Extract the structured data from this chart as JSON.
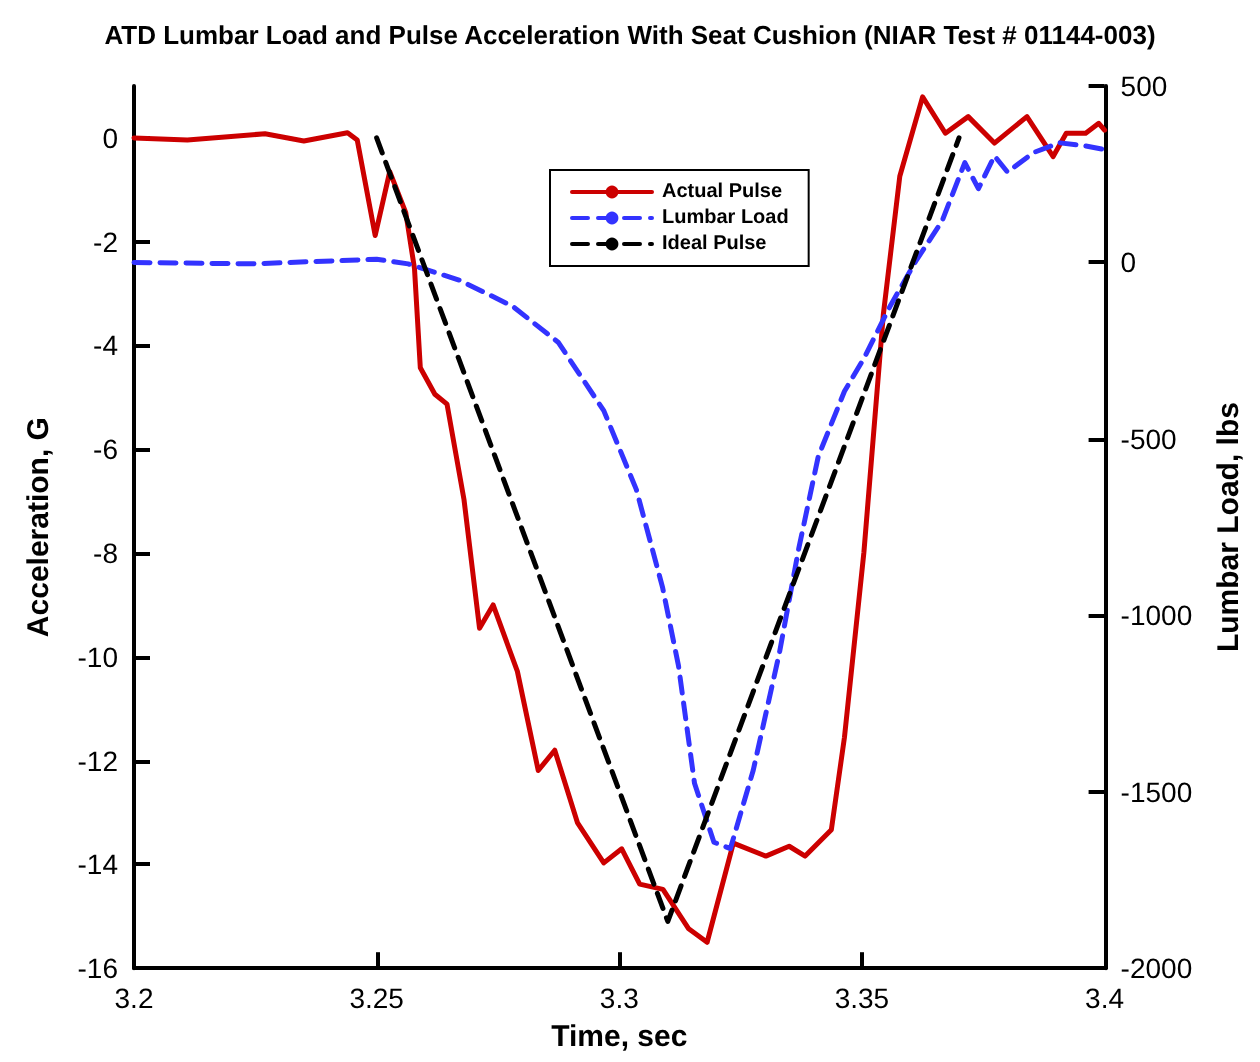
{
  "chart_data": {
    "type": "line",
    "title": "ATD Lumbar Load and Pulse Acceleration With Seat Cushion (NIAR Test # 01144-003)",
    "xlabel": "Time, sec",
    "ylabel": "Acceleration, G",
    "y2label": "Lumbar Load, lbs",
    "xlim": [
      3.2,
      3.4
    ],
    "xticks": [
      3.2,
      3.25,
      3.3,
      3.35,
      3.4
    ],
    "ylim": [
      -16,
      1
    ],
    "yticks": [
      -16,
      -14,
      -12,
      -10,
      -8,
      -6,
      -4,
      -2,
      0
    ],
    "y2lim": [
      -2000,
      500
    ],
    "y2ticks": [
      -2000,
      -1500,
      -1000,
      -500,
      0,
      500
    ],
    "legend": "top",
    "grid": false,
    "marker": "none",
    "series": [
      {
        "name": "Actual Pulse",
        "color": "#cc0000",
        "line_style": "solid",
        "x": [
          3.2,
          3.211,
          3.227,
          3.235,
          3.244,
          3.246,
          3.2497,
          3.2527,
          3.256,
          3.2578,
          3.259,
          3.262,
          3.2645,
          3.268,
          3.2712,
          3.274,
          3.279,
          3.2833,
          3.2867,
          3.2914,
          3.2968,
          3.3005,
          3.3042,
          3.309,
          3.3143,
          3.3181,
          3.3235,
          3.3302,
          3.335,
          3.3383,
          3.3437,
          3.3464,
          3.3504,
          3.3544,
          3.3578,
          3.3625,
          3.3672,
          3.3719,
          3.3773,
          3.384,
          3.3894,
          3.3921,
          3.3961,
          3.3988,
          3.4
        ],
        "values": [
          0,
          -0.04,
          0.08,
          -0.06,
          0.1,
          -0.04,
          -1.88,
          -0.65,
          -1.44,
          -2.52,
          -4.43,
          -4.94,
          -5.13,
          -6.97,
          -9.45,
          -9.0,
          -10.28,
          -12.19,
          -11.8,
          -13.2,
          -13.97,
          -13.7,
          -14.38,
          -14.48,
          -15.24,
          -15.5,
          -13.59,
          -13.84,
          -13.65,
          -13.84,
          -13.33,
          -11.55,
          -7.99,
          -3.41,
          -0.74,
          0.79,
          0.09,
          0.41,
          -0.1,
          0.41,
          -0.36,
          0.09,
          0.09,
          0.28,
          0.15
        ]
      },
      {
        "name": "Lumbar Load",
        "color": "#3333ff",
        "line_style": "dashed",
        "axis": "y2",
        "x": [
          3.2,
          3.2242,
          3.25,
          3.2565,
          3.267,
          3.278,
          3.2874,
          3.2968,
          3.3035,
          3.3089,
          3.3122,
          3.3155,
          3.3195,
          3.3229,
          3.3276,
          3.333,
          3.337,
          3.341,
          3.3464,
          3.3504,
          3.3558,
          3.3612,
          3.3665,
          3.3712,
          3.374,
          3.3773,
          3.38,
          3.3853,
          3.3907,
          3.3961,
          3.4
        ],
        "values": [
          0,
          -4,
          9,
          -4,
          -50,
          -124,
          -226,
          -420,
          -643,
          -920,
          -1143,
          -1476,
          -1643,
          -1661,
          -1439,
          -1106,
          -809,
          -550,
          -365,
          -272,
          -124,
          6,
          117,
          283,
          209,
          302,
          256,
          311,
          339,
          330,
          320
        ]
      },
      {
        "name": "Ideal Pulse",
        "color": "#000000",
        "line_style": "dashed",
        "x": [
          3.25,
          3.31,
          3.37
        ],
        "values": [
          0,
          -15.1,
          0
        ]
      }
    ]
  }
}
